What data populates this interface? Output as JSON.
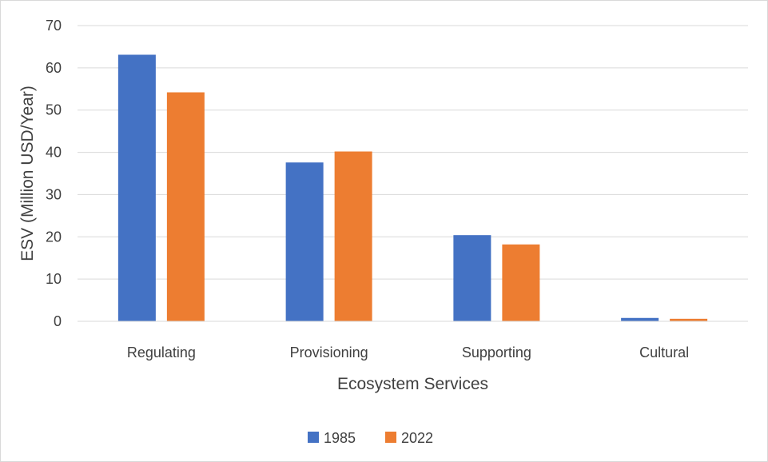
{
  "chart_data": {
    "type": "bar",
    "categories": [
      "Regulating",
      "Provisioning",
      "Supporting",
      "Cultural"
    ],
    "series": [
      {
        "name": "1985",
        "values": [
          63.1,
          37.6,
          20.4,
          0.8
        ],
        "color": "#4472c4"
      },
      {
        "name": "2022",
        "values": [
          54.2,
          40.2,
          18.2,
          0.6
        ],
        "color": "#ed7d31"
      }
    ],
    "title": "",
    "xlabel": "Ecosystem Services",
    "ylabel": "ESV (Million USD/Year)",
    "ylim": [
      0,
      70
    ],
    "yticks": [
      0,
      10,
      20,
      30,
      40,
      50,
      60,
      70
    ],
    "grid": true,
    "legend_position": "bottom"
  }
}
